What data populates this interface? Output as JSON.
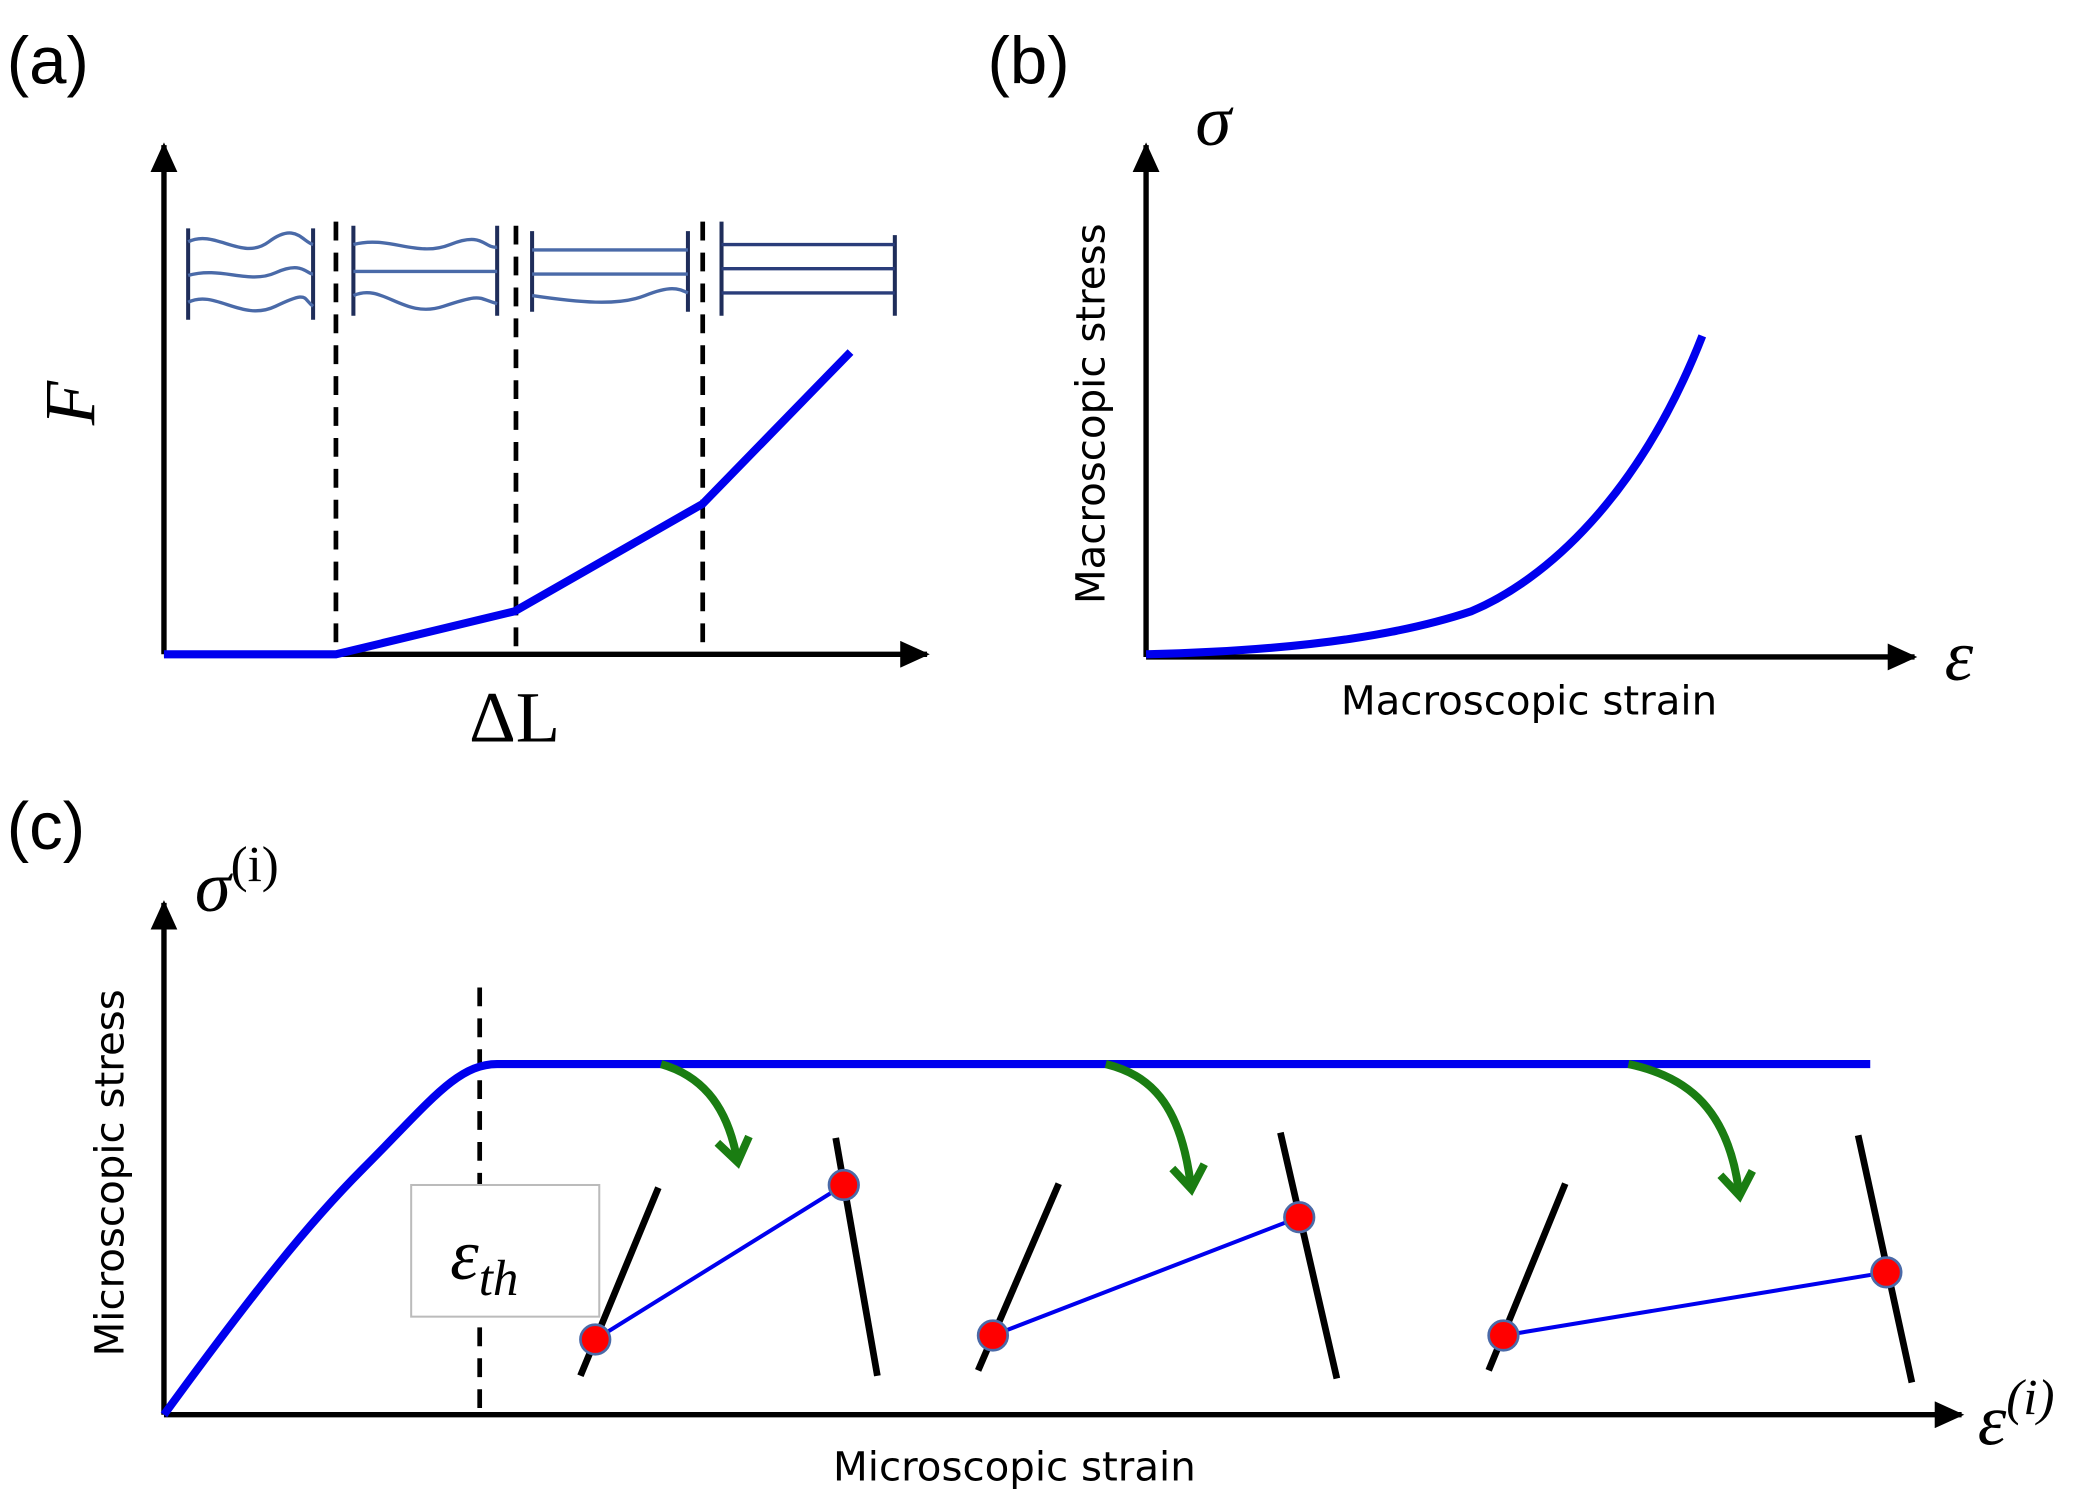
{
  "panels": {
    "a": {
      "label": "(a)",
      "y_symbol": "F",
      "x_symbol": "ΔL"
    },
    "b": {
      "label": "(b)",
      "y_symbol": "σ",
      "x_symbol": "ε",
      "y_label": "Macroscopic stress",
      "x_label": "Macroscopic strain"
    },
    "c": {
      "label": "(c)",
      "y_symbol": "σ",
      "y_superscript": "(i)",
      "x_symbol": "ε",
      "x_superscript": "(i)",
      "y_label": "Microscopic stress",
      "x_label": "Microscopic strain",
      "threshold_symbol": "ε",
      "threshold_subscript": "th"
    }
  }
}
